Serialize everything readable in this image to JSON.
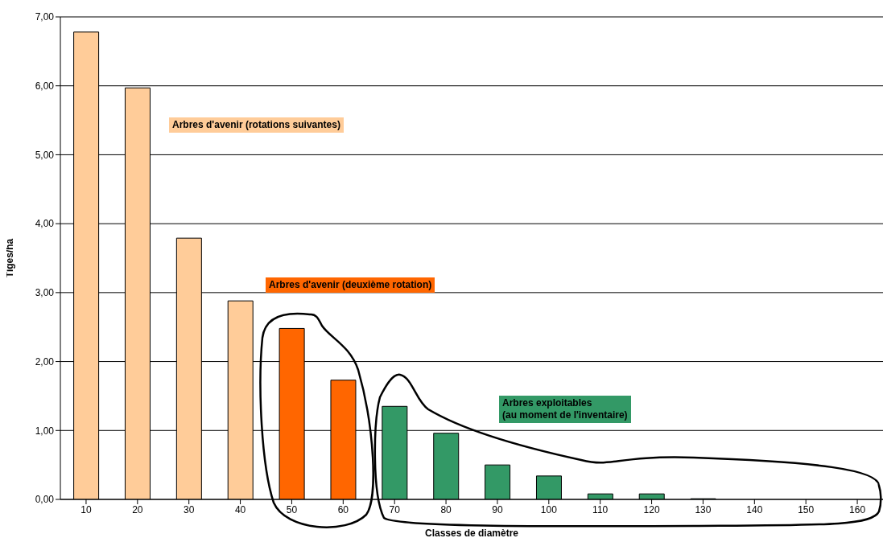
{
  "chart_data": {
    "type": "bar",
    "xlabel": "Classes de diamètre",
    "ylabel": "Tiges/ha",
    "categories": [
      "10",
      "20",
      "30",
      "40",
      "50",
      "60",
      "70",
      "80",
      "90",
      "100",
      "110",
      "120",
      "130",
      "140",
      "150",
      "160"
    ],
    "values": [
      6.78,
      5.97,
      3.79,
      2.88,
      2.48,
      1.73,
      1.35,
      0.96,
      0.5,
      0.34,
      0.08,
      0.08,
      0.01,
      0,
      0,
      0
    ],
    "colors": [
      "#ffcc99",
      "#ffcc99",
      "#ffcc99",
      "#ffcc99",
      "#ff6600",
      "#ff6600",
      "#339966",
      "#339966",
      "#339966",
      "#339966",
      "#339966",
      "#339966",
      "#339966",
      "#339966",
      "#339966",
      "#339966"
    ],
    "ylim": [
      0,
      7
    ],
    "yticks": [
      {
        "value": 0,
        "label": "0,00"
      },
      {
        "value": 1,
        "label": "1,00"
      },
      {
        "value": 2,
        "label": "2,00"
      },
      {
        "value": 3,
        "label": "3,00"
      },
      {
        "value": 4,
        "label": "4,00"
      },
      {
        "value": 5,
        "label": "5,00"
      },
      {
        "value": 6,
        "label": "6,00"
      },
      {
        "value": 7,
        "label": "7,00"
      }
    ],
    "grid": "y",
    "legend": false,
    "annotations": [
      "Arbres d'avenir (rotations suivantes)",
      "Arbres d'avenir (deuxième rotation)",
      "Arbres exploitables\n(au moment de l'inventaire)"
    ]
  }
}
